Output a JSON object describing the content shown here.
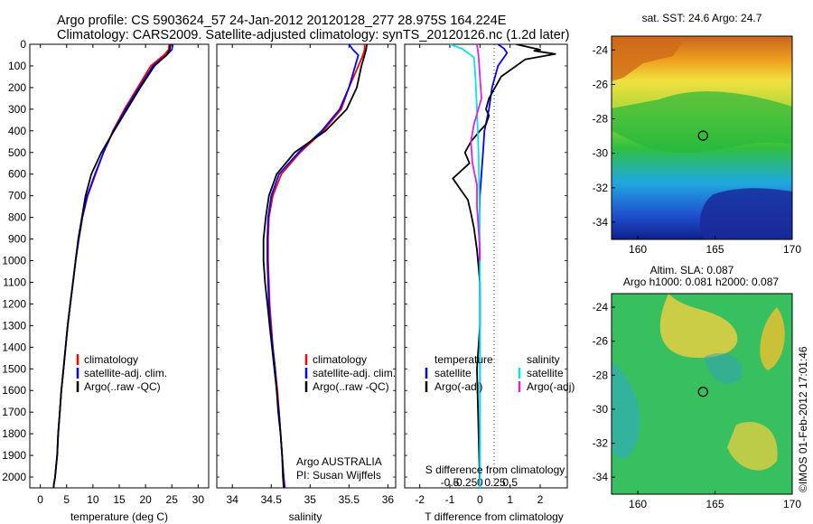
{
  "header": {
    "line1": "Argo profile: CS 5903624_57 24-Jan-2012 20120128_277 28.975S 164.224E",
    "line2": "Climatology: CARS2009. Satellite-adjusted climatology: synTS_20120126.nc (1.2d later)"
  },
  "colors": {
    "climatology": "#ff0000",
    "satellite": "#0000ff",
    "argo": "#000000",
    "sat_salinity": "#00e5ee",
    "argo_salinity_diff": "#e020e0"
  },
  "depth_axis": {
    "ylim": [
      2050,
      0
    ],
    "ticks": [
      "0",
      "100",
      "200",
      "300",
      "400",
      "500",
      "600",
      "700",
      "800",
      "900",
      "1000",
      "1100",
      "1200",
      "1300",
      "1400",
      "1500",
      "1600",
      "1700",
      "1800",
      "1900",
      "2000"
    ]
  },
  "temperature_panel": {
    "xlabel": "temperature (deg C)",
    "xticks": [
      "0",
      "5",
      "10",
      "15",
      "20",
      "25",
      "30"
    ],
    "xlim": [
      -2,
      32
    ],
    "legend": [
      "climatology",
      "satellite-adj. clim.",
      "Argo(..raw -QC)"
    ]
  },
  "salinity_panel": {
    "xlabel": "salinity",
    "xticks": [
      "34",
      "34.5",
      "35",
      "35.5",
      "36"
    ],
    "xlim": [
      33.8,
      36.1
    ],
    "legend": [
      "climatology",
      "satellite-adj. clim.",
      "Argo(..raw -QC)"
    ],
    "note1": "Argo AUSTRALIA",
    "note2": "PI: Susan Wijffels"
  },
  "diff_panel": {
    "xlabel": "T difference from climatology",
    "xticks": [
      "-2",
      "-1",
      "0",
      "1",
      "2"
    ],
    "xlim": [
      -2.5,
      2.9
    ],
    "top_label": "S difference from climatology",
    "s_ticks": [
      "-0.5",
      "-0.25",
      "0",
      "0.25",
      "0.5"
    ],
    "legend_temp_title": "temperature",
    "legend_sal_title": "salinity",
    "legend_temp": [
      "satellite",
      "Argo(-adj)"
    ],
    "legend_sal": [
      "satellite",
      "Argo(-adj)"
    ]
  },
  "sst_map": {
    "title": "sat. SST: 24.6  Argo: 24.7",
    "xticks": [
      "160",
      "165",
      "170"
    ],
    "yticks": [
      "-24",
      "-26",
      "-28",
      "-30",
      "-32",
      "-34"
    ],
    "xlim": [
      158.3,
      170
    ],
    "ylim": [
      -35,
      -23.2
    ],
    "float_position": [
      164.224,
      -28.975
    ]
  },
  "sla_map": {
    "title1": "Altim. SLA: 0.087",
    "title2": "Argo h1000: 0.081  h2000: 0.087",
    "xticks": [
      "160",
      "165",
      "170"
    ],
    "yticks": [
      "-24",
      "-26",
      "-28",
      "-30",
      "-32",
      "-34"
    ],
    "xlim": [
      158.3,
      170
    ],
    "ylim": [
      -35,
      -23.2
    ],
    "float_position": [
      164.224,
      -28.975
    ]
  },
  "stamp": "©IMOS 01-Feb-2012 17:01:46",
  "chart_data": [
    {
      "type": "line",
      "title": "",
      "xlabel": "temperature (deg C)",
      "ylabel": "",
      "xlim": [
        -2,
        32
      ],
      "ylim": [
        2050,
        0
      ],
      "series": [
        {
          "name": "climatology",
          "x": [
            24.5,
            24.4,
            23.5,
            21.0,
            18.5,
            16.0,
            13.8,
            12.0,
            10.5,
            9.0,
            8.0,
            7.3,
            6.7,
            6.2,
            5.7,
            5.2,
            4.8,
            4.4,
            4.0,
            3.7,
            3.4,
            3.2,
            3.0,
            2.8,
            2.6,
            2.5,
            2.4
          ],
          "y": [
            0,
            25,
            50,
            100,
            200,
            300,
            400,
            500,
            600,
            700,
            800,
            900,
            1000,
            1100,
            1200,
            1300,
            1400,
            1500,
            1600,
            1700,
            1800,
            1900,
            1950,
            2000,
            2030,
            2050,
            2060
          ]
        },
        {
          "name": "satellite-adj. clim.",
          "x": [
            25.2,
            25.0,
            24.0,
            21.4,
            18.8,
            16.2,
            13.9,
            12.0,
            10.4,
            8.9,
            8.0,
            7.3,
            6.7,
            6.2,
            5.7,
            5.2,
            4.8,
            4.4,
            4.0,
            3.7,
            3.4,
            3.2,
            3.0,
            2.8,
            2.6,
            2.5
          ],
          "y": [
            0,
            25,
            50,
            100,
            200,
            300,
            400,
            500,
            600,
            700,
            800,
            900,
            1000,
            1100,
            1200,
            1300,
            1400,
            1500,
            1600,
            1700,
            1800,
            1900,
            1950,
            2000,
            2030,
            2050
          ]
        },
        {
          "name": "Argo(..raw -QC)",
          "x": [
            24.7,
            24.6,
            24.0,
            21.7,
            19.0,
            16.5,
            14.0,
            11.6,
            9.7,
            8.6,
            7.9,
            7.2,
            6.7,
            6.2,
            5.7,
            5.2,
            4.8,
            4.4,
            4.0,
            3.7,
            3.4,
            3.2,
            3.0,
            2.8,
            2.6,
            2.5
          ],
          "y": [
            0,
            25,
            50,
            100,
            200,
            300,
            400,
            500,
            600,
            700,
            800,
            900,
            1000,
            1100,
            1200,
            1300,
            1400,
            1500,
            1600,
            1700,
            1800,
            1900,
            1950,
            2000,
            2030,
            2050
          ]
        }
      ]
    },
    {
      "type": "line",
      "title": "",
      "xlabel": "salinity",
      "ylabel": "",
      "xlim": [
        33.8,
        36.1
      ],
      "ylim": [
        2050,
        0
      ],
      "series": [
        {
          "name": "climatology",
          "x": [
            35.7,
            35.7,
            35.68,
            35.62,
            35.5,
            35.4,
            35.17,
            34.87,
            34.63,
            34.52,
            34.47,
            34.46,
            34.46,
            34.47,
            34.48,
            34.5,
            34.52,
            34.55,
            34.58,
            34.6,
            34.62,
            34.64,
            34.66,
            34.67,
            34.68
          ],
          "y": [
            0,
            25,
            50,
            100,
            200,
            300,
            400,
            500,
            600,
            700,
            800,
            900,
            1000,
            1100,
            1200,
            1300,
            1400,
            1500,
            1600,
            1700,
            1800,
            1900,
            2000,
            2030,
            2060
          ]
        },
        {
          "name": "satellite-adj. clim.",
          "x": [
            35.5,
            35.55,
            35.62,
            35.58,
            35.5,
            35.38,
            35.15,
            34.85,
            34.6,
            34.5,
            34.46,
            34.45,
            34.45,
            34.46,
            34.47,
            34.49,
            34.52,
            34.55,
            34.57,
            34.6,
            34.62,
            34.64,
            34.66,
            34.67
          ],
          "y": [
            0,
            25,
            50,
            100,
            200,
            300,
            400,
            500,
            600,
            700,
            800,
            900,
            1000,
            1100,
            1200,
            1300,
            1400,
            1500,
            1600,
            1700,
            1800,
            1900,
            2000,
            2050
          ]
        },
        {
          "name": "Argo(..raw -QC)",
          "x": [
            35.73,
            35.72,
            35.7,
            35.66,
            35.6,
            35.47,
            35.2,
            34.8,
            34.57,
            34.47,
            34.43,
            34.4,
            34.4,
            34.42,
            34.45,
            34.48,
            34.51,
            34.54,
            34.57,
            34.59,
            34.62,
            34.64,
            34.65,
            34.66
          ],
          "y": [
            0,
            25,
            50,
            100,
            200,
            300,
            400,
            500,
            600,
            700,
            800,
            900,
            1000,
            1100,
            1200,
            1300,
            1400,
            1500,
            1600,
            1700,
            1800,
            1900,
            2000,
            2050
          ]
        }
      ]
    },
    {
      "type": "line",
      "title": "",
      "xlabel": "T difference from climatology",
      "ylabel": "",
      "xlim": [
        -2.5,
        2.9
      ],
      "ylim": [
        2050,
        0
      ],
      "series": [
        {
          "name": "temperature satellite",
          "x": [
            0.6,
            0.8,
            0.9,
            0.6,
            0.4,
            0.3,
            0.15,
            0.1,
            0.05,
            0.0,
            -0.02,
            -0.02,
            -0.01,
            0.0,
            0.0,
            0.0,
            0.0,
            0.0,
            0.0,
            0.0
          ],
          "y": [
            0,
            20,
            40,
            100,
            200,
            300,
            400,
            500,
            600,
            700,
            800,
            900,
            1000,
            1200,
            1400,
            1600,
            1700,
            1800,
            1900,
            2050
          ]
        },
        {
          "name": "temperature Argo(-adj)",
          "x": [
            1.2,
            2.0,
            1.8,
            2.5,
            1.5,
            1.2,
            0.7,
            0.5,
            0.3,
            0.2,
            0.3,
            0.2,
            0.0,
            -0.3,
            -0.5,
            -0.35,
            -0.9,
            -0.6,
            -0.4,
            -0.3,
            -0.2,
            -0.1,
            0.0,
            0.0,
            -0.1,
            0.0
          ],
          "y": [
            0,
            25,
            30,
            45,
            70,
            100,
            150,
            200,
            250,
            300,
            330,
            370,
            400,
            450,
            500,
            550,
            620,
            680,
            720,
            780,
            850,
            950,
            1100,
            1300,
            1500,
            2050
          ]
        },
        {
          "name": "salinity satellite",
          "x": [
            -1.0,
            -0.6,
            -0.2,
            -0.15,
            -0.1,
            -0.05,
            -0.02,
            0.0,
            0.0,
            0.0
          ],
          "y": [
            0,
            20,
            60,
            150,
            300,
            500,
            700,
            1000,
            1500,
            2050
          ]
        },
        {
          "name": "salinity Argo(-adj)",
          "x": [
            -0.1,
            -0.05,
            0.0,
            0.05,
            -0.2,
            -0.3,
            -0.25,
            -0.1,
            -0.1,
            -0.05,
            0.0,
            0.0
          ],
          "y": [
            0,
            50,
            150,
            250,
            370,
            450,
            550,
            650,
            750,
            850,
            950,
            1000
          ]
        }
      ]
    }
  ]
}
